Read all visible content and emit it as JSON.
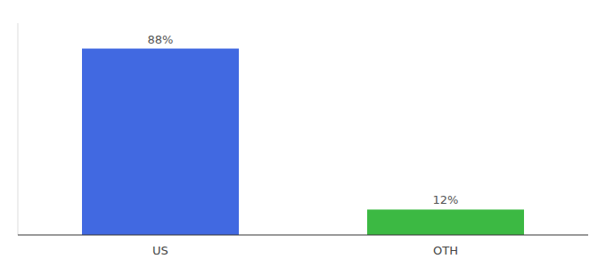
{
  "chart_data": {
    "type": "bar",
    "categories": [
      "US",
      "OTH"
    ],
    "values": [
      88,
      12
    ],
    "value_labels": [
      "88%",
      "12%"
    ],
    "colors": [
      "#4169e1",
      "#3cb943"
    ],
    "ylim": [
      0,
      100
    ],
    "data_labels": true,
    "tick_labels": "x"
  }
}
